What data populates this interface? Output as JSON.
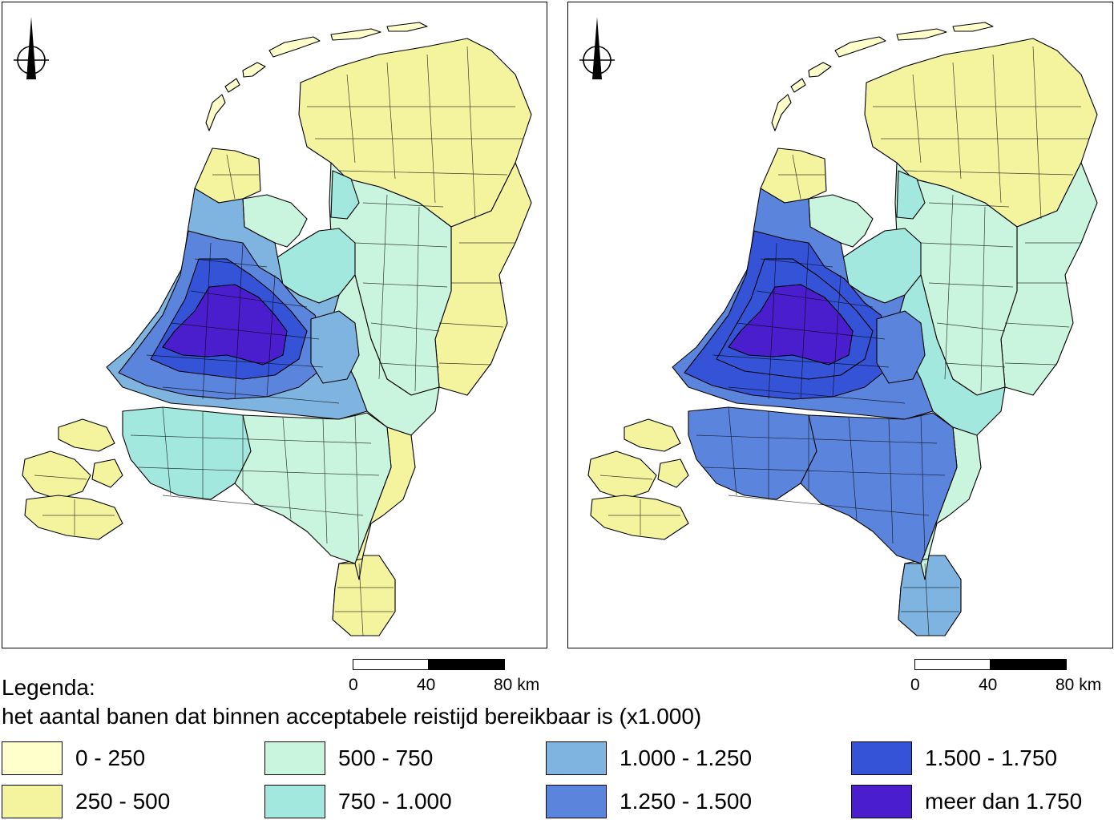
{
  "maps": [
    {
      "id": "left",
      "scale": {
        "ticks": [
          "0",
          "40",
          "80 km"
        ]
      },
      "north_arrow_icon": "north-arrow-icon",
      "regions": [
        {
          "name": "wadden-islands",
          "class": "0 - 250"
        },
        {
          "name": "north-groningen-friesland",
          "class": "250 - 500"
        },
        {
          "name": "east-drenthe-overijssel",
          "class": "250 - 500"
        },
        {
          "name": "noord-holland-north",
          "class": "250 - 500"
        },
        {
          "name": "flevoland-overijssel-west",
          "class": "500 - 750"
        },
        {
          "name": "flevoland-polder",
          "class": "750 - 1.000"
        },
        {
          "name": "gelderland-east",
          "class": "500 - 750"
        },
        {
          "name": "achterhoek-twente-border",
          "class": "250 - 500"
        },
        {
          "name": "randstad-outer",
          "class": "1.000 - 1.250"
        },
        {
          "name": "randstad-middle",
          "class": "1.250 - 1.500"
        },
        {
          "name": "randstad-inner",
          "class": "1.500 - 1.750"
        },
        {
          "name": "randstad-core",
          "class": "meer dan 1.750"
        },
        {
          "name": "utrecht-gelderland-center",
          "class": "1.000 - 1.250"
        },
        {
          "name": "brabant-west",
          "class": "750 - 1.000"
        },
        {
          "name": "brabant-east-limburg-north",
          "class": "500 - 750"
        },
        {
          "name": "limburg-south",
          "class": "250 - 500"
        },
        {
          "name": "zeeland",
          "class": "250 - 500"
        }
      ]
    },
    {
      "id": "right",
      "scale": {
        "ticks": [
          "0",
          "40",
          "80 km"
        ]
      },
      "north_arrow_icon": "north-arrow-icon",
      "regions": [
        {
          "name": "wadden-islands",
          "class": "0 - 250"
        },
        {
          "name": "north-groningen-friesland",
          "class": "250 - 500"
        },
        {
          "name": "east-drenthe-overijssel",
          "class": "500 - 750"
        },
        {
          "name": "noord-holland-north",
          "class": "250 - 500"
        },
        {
          "name": "flevoland-overijssel-west",
          "class": "500 - 750"
        },
        {
          "name": "flevoland-polder",
          "class": "750 - 1.000"
        },
        {
          "name": "gelderland-east",
          "class": "750 - 1.000"
        },
        {
          "name": "achterhoek-twente-border",
          "class": "500 - 750"
        },
        {
          "name": "randstad-outer",
          "class": "1.250 - 1.500"
        },
        {
          "name": "randstad-middle",
          "class": "1.500 - 1.750"
        },
        {
          "name": "randstad-inner",
          "class": "1.500 - 1.750"
        },
        {
          "name": "randstad-core",
          "class": "meer dan 1.750"
        },
        {
          "name": "utrecht-gelderland-center",
          "class": "1.250 - 1.500"
        },
        {
          "name": "brabant-west",
          "class": "1.250 - 1.500"
        },
        {
          "name": "brabant-east-limburg-north",
          "class": "1.250 - 1.500"
        },
        {
          "name": "limburg-south",
          "class": "1.000 - 1.250"
        },
        {
          "name": "zeeland",
          "class": "250 - 500"
        }
      ]
    }
  ],
  "legend": {
    "title": "Legenda:",
    "subtitle": "het aantal banen dat binnen acceptabele reistijd bereikbaar is (x1.000)",
    "items": [
      {
        "label": "0 - 250",
        "color": "#ffffcc"
      },
      {
        "label": "250 - 500",
        "color": "#f4f49f"
      },
      {
        "label": "500 - 750",
        "color": "#c9f5df"
      },
      {
        "label": "750 - 1.000",
        "color": "#a3e8de"
      },
      {
        "label": "1.000 - 1.250",
        "color": "#80b4e0"
      },
      {
        "label": "1.250 - 1.500",
        "color": "#5b85dc"
      },
      {
        "label": "1.500 - 1.750",
        "color": "#3453d6"
      },
      {
        "label": "meer dan 1.750",
        "color": "#4a1ecc"
      }
    ]
  }
}
